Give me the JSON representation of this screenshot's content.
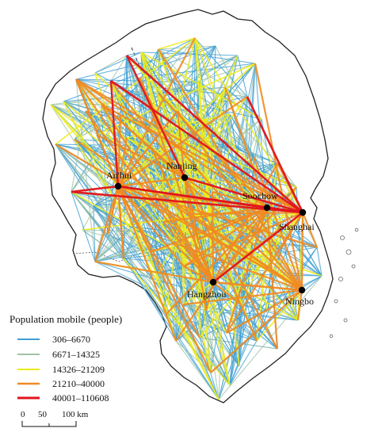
{
  "cities": [
    {
      "id": "anhui",
      "label": "An'hui"
    },
    {
      "id": "nanjing",
      "label": "Nanjing"
    },
    {
      "id": "soochow",
      "label": "Soochow"
    },
    {
      "id": "shanghai",
      "label": "Shanghai"
    },
    {
      "id": "hangzhou",
      "label": "Hangzhou"
    },
    {
      "id": "ningbo",
      "label": "Ningbo"
    }
  ],
  "legend": {
    "title": "Population mobile (people)",
    "classes": [
      {
        "label": "306–6670",
        "color": "#3f9fd3"
      },
      {
        "label": "6671–14325",
        "color": "#9fc3a8"
      },
      {
        "label": "14326–21209",
        "color": "#ecec1c"
      },
      {
        "label": "21210–40000",
        "color": "#f08a22"
      },
      {
        "label": "40001–110608",
        "color": "#e0141c"
      }
    ]
  },
  "scale_bar": {
    "zero": "0",
    "mid": "50",
    "end": "100 km"
  }
}
